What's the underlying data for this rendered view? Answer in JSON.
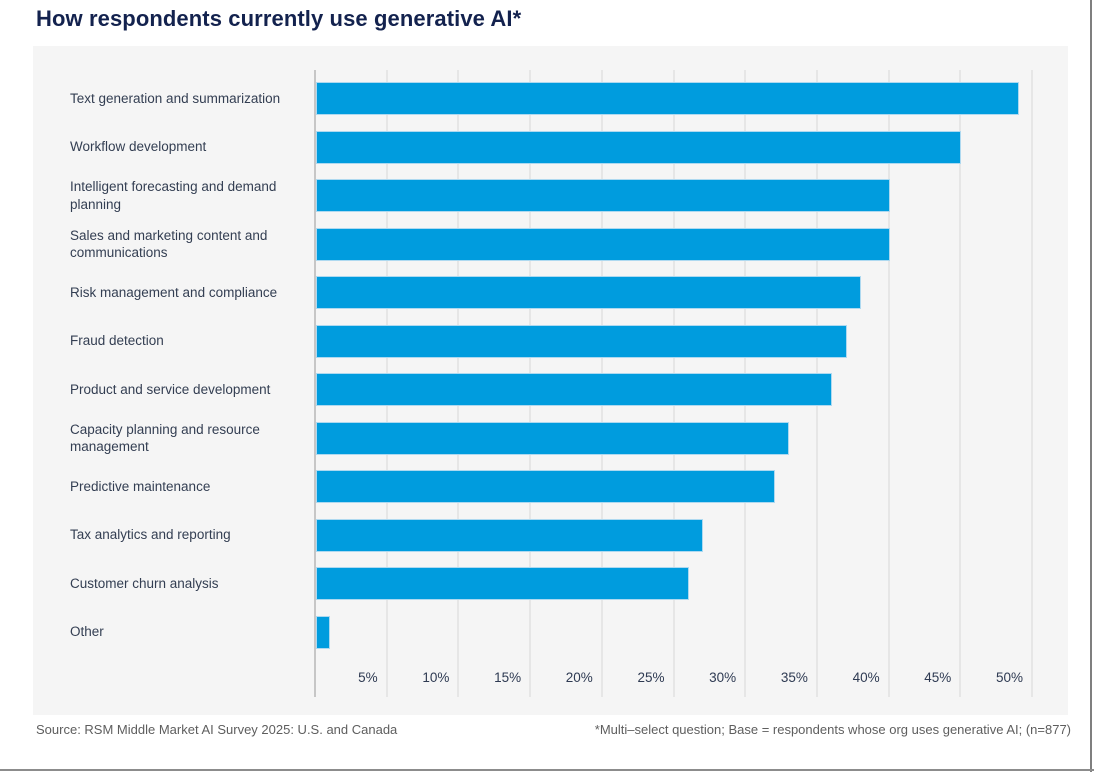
{
  "title": "How respondents currently use generative AI*",
  "footer": {
    "source": "Source: RSM Middle Market AI Survey 2025: U.S. and Canada",
    "note": "*Multi–select question; Base = respondents whose org uses generative AI; (n=877)"
  },
  "colors": {
    "bar": "#009CDE",
    "panel_background": "#F5F5F5",
    "title_text": "#13224E",
    "label_text": "#333E52",
    "gridline": "#E6E6E6",
    "axis_line": "#C6C6C6",
    "footer_text": "#5E5E5E"
  },
  "chart_data": {
    "type": "bar",
    "orientation": "horizontal",
    "title": "How respondents currently use generative AI*",
    "categories": [
      "Text generation and summarization",
      "Workflow development",
      "Intelligent forecasting and demand planning",
      "Sales and marketing content and communications",
      "Risk management and compliance",
      "Fraud detection",
      "Product and service development",
      "Capacity planning and resource management",
      "Predictive maintenance",
      "Tax analytics and reporting",
      "Customer churn analysis",
      "Other"
    ],
    "values": [
      49,
      45,
      40,
      40,
      38,
      37,
      36,
      33,
      32,
      27,
      26,
      1
    ],
    "unit": "%",
    "x_ticks": [
      "5%",
      "10%",
      "15%",
      "20%",
      "25%",
      "30%",
      "35%",
      "40%",
      "45%",
      "50%"
    ],
    "x_tick_values": [
      5,
      10,
      15,
      20,
      25,
      30,
      35,
      40,
      45,
      50
    ],
    "xlim": [
      0,
      50
    ],
    "grid": true,
    "legend": false,
    "bar_color": "#009CDE",
    "source": "Source: RSM Middle Market AI Survey 2025: U.S. and Canada",
    "footnote": "*Multi–select question; Base = respondents whose org uses generative AI; (n=877)"
  }
}
